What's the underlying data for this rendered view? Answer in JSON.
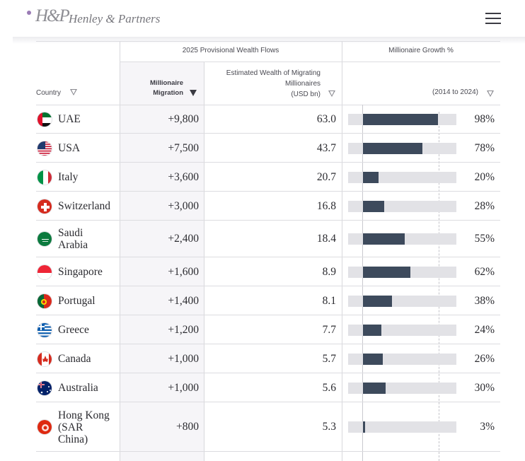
{
  "header": {
    "logo_mark": "H&P",
    "logo_text": "Henley & Partners"
  },
  "table": {
    "group_wealth_flows": "2025 Provisional Wealth Flows",
    "group_growth": "Millionaire Growth %",
    "col_country": "Country",
    "col_migration_line1": "Millionaire",
    "col_migration_line2": "Migration",
    "col_wealth_line1": "Estimated Wealth of Migrating",
    "col_wealth_line2": "Millionaires",
    "col_wealth_line3": "(USD bn)",
    "col_growth": "(2014 to 2024)",
    "rows": [
      {
        "country": "UAE",
        "migration": "+9,800",
        "wealth": "63.0",
        "growth": "98%",
        "growth_value": 98,
        "flag": "uae-flag-icon"
      },
      {
        "country": "USA",
        "migration": "+7,500",
        "wealth": "43.7",
        "growth": "78%",
        "growth_value": 78,
        "flag": "usa-flag-icon"
      },
      {
        "country": "Italy",
        "migration": "+3,600",
        "wealth": "20.7",
        "growth": "20%",
        "growth_value": 20,
        "flag": "italy-flag-icon"
      },
      {
        "country": "Switzerland",
        "migration": "+3,000",
        "wealth": "16.8",
        "growth": "28%",
        "growth_value": 28,
        "flag": "switzerland-flag-icon"
      },
      {
        "country": "Saudi Arabia",
        "migration": "+2,400",
        "wealth": "18.4",
        "growth": "55%",
        "growth_value": 55,
        "flag": "saudi-arabia-flag-icon"
      },
      {
        "country": "Singapore",
        "migration": "+1,600",
        "wealth": "8.9",
        "growth": "62%",
        "growth_value": 62,
        "flag": "singapore-flag-icon"
      },
      {
        "country": "Portugal",
        "migration": "+1,400",
        "wealth": "8.1",
        "growth": "38%",
        "growth_value": 38,
        "flag": "portugal-flag-icon"
      },
      {
        "country": "Greece",
        "migration": "+1,200",
        "wealth": "7.7",
        "growth": "24%",
        "growth_value": 24,
        "flag": "greece-flag-icon"
      },
      {
        "country": "Canada",
        "migration": "+1,000",
        "wealth": "5.7",
        "growth": "26%",
        "growth_value": 26,
        "flag": "canada-flag-icon"
      },
      {
        "country": "Australia",
        "migration": "+1,000",
        "wealth": "5.6",
        "growth": "30%",
        "growth_value": 30,
        "flag": "australia-flag-icon"
      },
      {
        "country": "Hong Kong (SAR China)",
        "migration": "+800",
        "wealth": "5.3",
        "growth": "3%",
        "growth_value": 3,
        "flag": "hong-kong-flag-icon"
      }
    ]
  },
  "colors": {
    "bar_fill": "#3d4a5c",
    "bar_track": "#e2e2e6",
    "accent_dot": "#9a7bb5"
  }
}
